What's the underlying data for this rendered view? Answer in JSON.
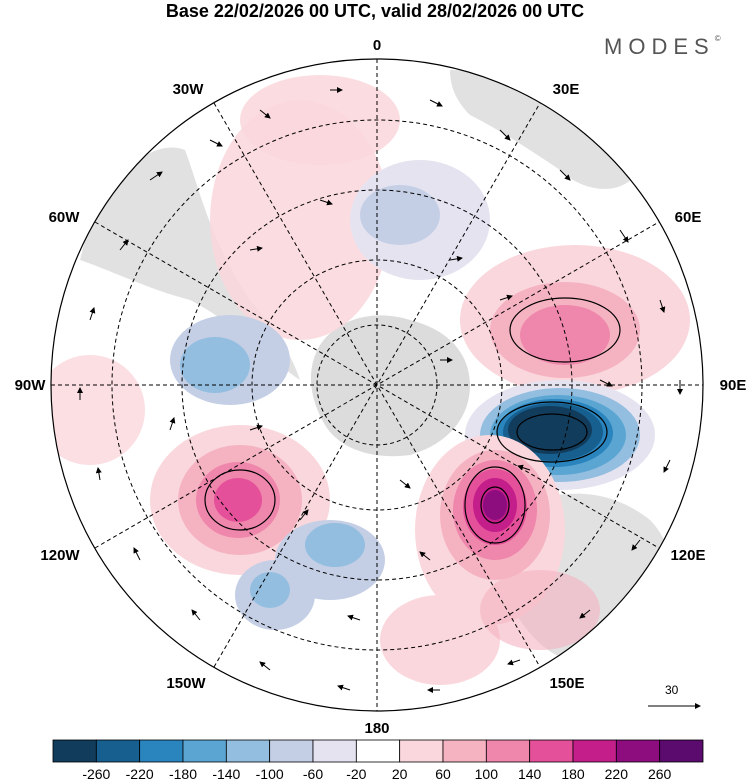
{
  "title": "Base 22/02/2026 00 UTC, valid 28/02/2026 00 UTC",
  "brand": {
    "name": "MODES",
    "mark": "©"
  },
  "map": {
    "projection": "south polar stereographic",
    "longitude_labels": {
      "top": "0",
      "bottom": "180",
      "left": "90W",
      "right": "90E",
      "upper_left_1": "30W",
      "upper_left_2": "60W",
      "upper_right_1": "30E",
      "upper_right_2": "60E",
      "lower_left_1": "120W",
      "lower_left_2": "150W",
      "lower_right_1": "120E",
      "lower_right_2": "150E"
    },
    "reference_vector": "30"
  },
  "colorbar": {
    "colors": [
      "#123c5c",
      "#165f8f",
      "#2a84be",
      "#5ba5d2",
      "#93bee0",
      "#c4cfe6",
      "#e6e3f1",
      "#ffffff",
      "#fad7dc",
      "#f5b3c2",
      "#ef86ac",
      "#e5509a",
      "#c31e8a",
      "#8d0d7f",
      "#5b0a6d"
    ],
    "labels": [
      "-260",
      "-220",
      "-180",
      "-140",
      "-100",
      "-60",
      "-20",
      "20",
      "60",
      "100",
      "140",
      "180",
      "220",
      "260"
    ]
  },
  "anomalies": [
    {
      "name": "strong-negative-anomaly-east",
      "value": -260
    },
    {
      "name": "positive-anomaly-southeast",
      "value": 220
    },
    {
      "name": "positive-anomaly-east",
      "value": 140
    },
    {
      "name": "positive-anomaly-southwest",
      "value": 180
    },
    {
      "name": "negative-anomaly-south",
      "value": -100
    },
    {
      "name": "negative-anomaly-west",
      "value": -100
    },
    {
      "name": "negative-anomaly-north",
      "value": -60
    }
  ]
}
